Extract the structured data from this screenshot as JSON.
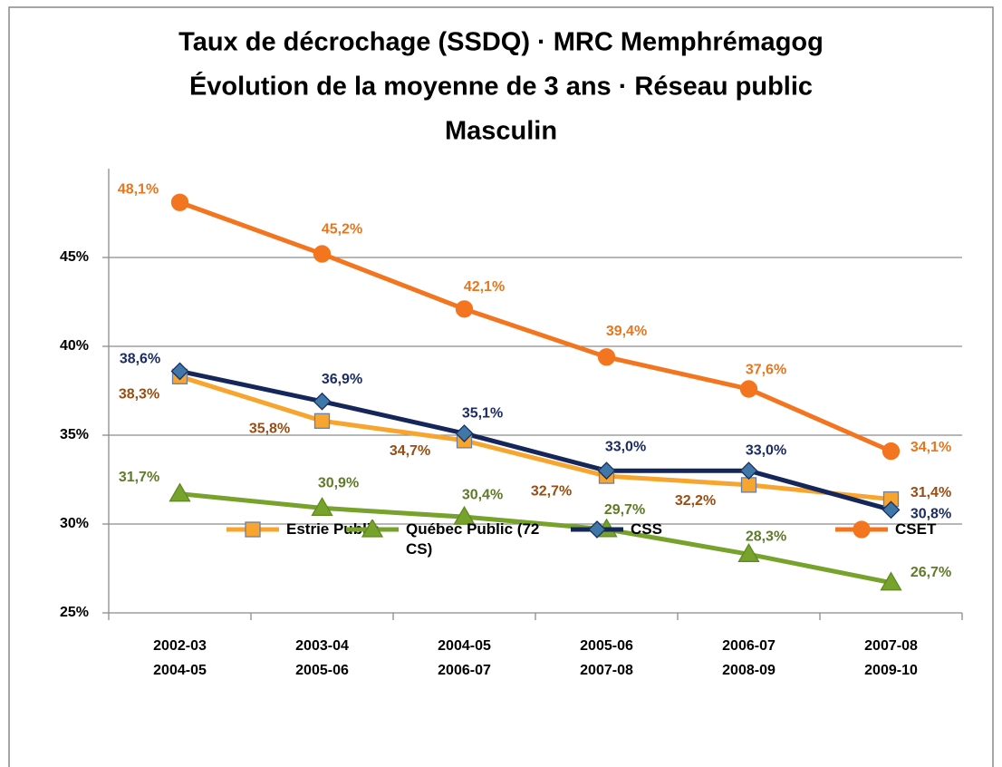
{
  "chart_data": {
    "type": "line",
    "title": [
      "Taux de décrochage (SSDQ) · MRC Memphrémagog",
      "Évolution de la moyenne de 3 ans · Réseau public",
      "Masculin"
    ],
    "categories": [
      [
        "2002-03",
        "2004-05"
      ],
      [
        "2003-04",
        "2005-06"
      ],
      [
        "2004-05",
        "2006-07"
      ],
      [
        "2005-06",
        "2007-08"
      ],
      [
        "2006-07",
        "2008-09"
      ],
      [
        "2007-08",
        "2009-10"
      ]
    ],
    "ylim": [
      25,
      50
    ],
    "yticks": [
      {
        "value": 25,
        "label": "25%"
      },
      {
        "value": 30,
        "label": "30%"
      },
      {
        "value": 35,
        "label": "35%"
      },
      {
        "value": 40,
        "label": "40%"
      },
      {
        "value": 45,
        "label": "45%"
      }
    ],
    "grid": true,
    "legend": "bottom",
    "series": [
      {
        "name": "Estrie Public",
        "color": "#f7a52f",
        "label_color": "#9a4d12",
        "marker": "square",
        "values": [
          38.3,
          35.8,
          34.7,
          32.7,
          32.2,
          31.4
        ],
        "value_labels": [
          "38,3%",
          "35,8%",
          "34,7%",
          "32,7%",
          "32,2%",
          "31,4%"
        ]
      },
      {
        "name": "Québec Public (72 CS)",
        "color": "#77a22b",
        "label_color": "#5f7a28",
        "marker": "triangle",
        "values": [
          31.7,
          30.9,
          30.4,
          29.7,
          28.3,
          26.7
        ],
        "value_labels": [
          "31,7%",
          "30,9%",
          "30,4%",
          "29,7%",
          "28,3%",
          "26,7%"
        ]
      },
      {
        "name": "CSS",
        "color": "#15275a",
        "label_color": "#1b2d63",
        "marker": "diamond",
        "values": [
          38.6,
          36.9,
          35.1,
          33.0,
          33.0,
          30.8
        ],
        "value_labels": [
          "38,6%",
          "36,9%",
          "35,1%",
          "33,0%",
          "33,0%",
          "30,8%"
        ]
      },
      {
        "name": "CSET",
        "color": "#f4751f",
        "label_color": "#e8761e",
        "marker": "circle",
        "values": [
          48.1,
          45.2,
          42.1,
          39.4,
          37.6,
          34.1
        ],
        "value_labels": [
          "48,1%",
          "45,2%",
          "42,1%",
          "39,4%",
          "37,6%",
          "34,1%"
        ]
      }
    ]
  }
}
